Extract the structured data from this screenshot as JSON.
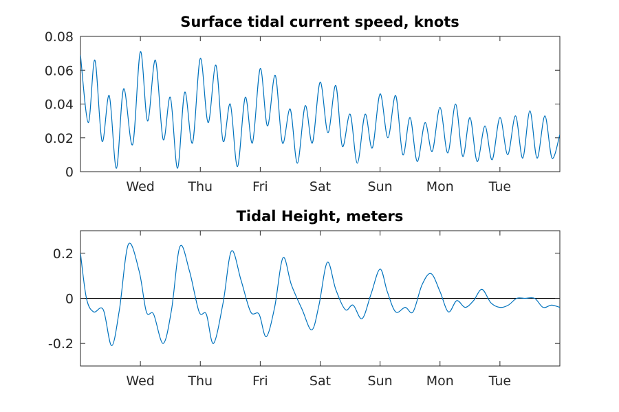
{
  "figure": {
    "background": "#ffffff",
    "axis_color": "#262626",
    "series_color": "#0072bd"
  },
  "chart_data": [
    {
      "type": "line",
      "title": "Surface tidal current speed, knots",
      "xlabel": "",
      "ylabel": "",
      "x_unit": "days from plot start",
      "xlim": [
        0,
        8
      ],
      "ylim": [
        0,
        0.08
      ],
      "grid": false,
      "legend": "none",
      "yticks": [
        0,
        0.02,
        0.04,
        0.06,
        0.08
      ],
      "ytick_labels": [
        "0",
        "0.02",
        "0.04",
        "0.06",
        "0.08"
      ],
      "xticks": [
        1,
        2,
        3,
        4,
        5,
        6,
        7
      ],
      "xtick_labels": [
        "Wed",
        "Thu",
        "Fri",
        "Sat",
        "Sun",
        "Mon",
        "Tue"
      ],
      "series": [
        {
          "x": [
            0,
            0.13,
            0.24,
            0.36,
            0.48,
            0.6,
            0.72,
            0.87,
            1.0,
            1.12,
            1.25,
            1.38,
            1.5,
            1.62,
            1.74,
            1.87,
            2.0,
            2.13,
            2.26,
            2.38,
            2.5,
            2.62,
            2.75,
            2.87,
            3.0,
            3.12,
            3.25,
            3.37,
            3.5,
            3.62,
            3.75,
            3.87,
            4.0,
            4.13,
            4.26,
            4.37,
            4.5,
            4.62,
            4.75,
            4.87,
            5.0,
            5.13,
            5.26,
            5.38,
            5.5,
            5.62,
            5.75,
            5.87,
            6.0,
            6.13,
            6.26,
            6.38,
            6.5,
            6.62,
            6.75,
            6.87,
            7.0,
            7.13,
            7.26,
            7.38,
            7.5,
            7.62,
            7.75,
            7.87,
            8.0
          ],
          "y": [
            0.069,
            0.029,
            0.066,
            0.018,
            0.045,
            0.002,
            0.049,
            0.016,
            0.071,
            0.03,
            0.066,
            0.019,
            0.044,
            0.002,
            0.047,
            0.017,
            0.067,
            0.029,
            0.063,
            0.018,
            0.04,
            0.003,
            0.044,
            0.017,
            0.061,
            0.027,
            0.057,
            0.017,
            0.037,
            0.005,
            0.039,
            0.017,
            0.053,
            0.023,
            0.051,
            0.015,
            0.034,
            0.005,
            0.034,
            0.014,
            0.046,
            0.02,
            0.045,
            0.01,
            0.032,
            0.006,
            0.029,
            0.012,
            0.038,
            0.011,
            0.04,
            0.009,
            0.032,
            0.006,
            0.027,
            0.007,
            0.032,
            0.01,
            0.033,
            0.008,
            0.036,
            0.008,
            0.033,
            0.008,
            0.022
          ]
        }
      ]
    },
    {
      "type": "line",
      "title": "Tidal Height, meters",
      "xlabel": "",
      "ylabel": "",
      "x_unit": "days from plot start",
      "xlim": [
        0,
        8
      ],
      "ylim": [
        -0.3,
        0.3
      ],
      "grid": false,
      "legend": "none",
      "zero_line": true,
      "yticks": [
        -0.2,
        0,
        0.2
      ],
      "ytick_labels": [
        "-0.2",
        "0",
        "0.2"
      ],
      "xticks": [
        1,
        2,
        3,
        4,
        5,
        6,
        7
      ],
      "xtick_labels": [
        "Wed",
        "Thu",
        "Fri",
        "Sat",
        "Sun",
        "Mon",
        "Tue"
      ],
      "series": [
        {
          "x": [
            0,
            0.1,
            0.22,
            0.38,
            0.52,
            0.65,
            0.8,
            0.98,
            1.1,
            1.22,
            1.38,
            1.52,
            1.66,
            1.82,
            1.98,
            2.1,
            2.22,
            2.38,
            2.52,
            2.68,
            2.84,
            2.98,
            3.1,
            3.24,
            3.38,
            3.52,
            3.7,
            3.86,
            3.98,
            4.12,
            4.26,
            4.42,
            4.55,
            4.7,
            4.85,
            5.0,
            5.12,
            5.26,
            5.42,
            5.55,
            5.7,
            5.85,
            6.0,
            6.14,
            6.28,
            6.42,
            6.56,
            6.7,
            6.85,
            7.0,
            7.14,
            7.28,
            7.42,
            7.58,
            7.72,
            7.86,
            8.0
          ],
          "y": [
            0.2,
            0.0,
            -0.06,
            -0.05,
            -0.21,
            -0.05,
            0.24,
            0.12,
            -0.06,
            -0.07,
            -0.2,
            -0.05,
            0.23,
            0.12,
            -0.06,
            -0.07,
            -0.2,
            -0.02,
            0.21,
            0.08,
            -0.06,
            -0.07,
            -0.17,
            -0.04,
            0.18,
            0.06,
            -0.05,
            -0.14,
            -0.03,
            0.16,
            0.04,
            -0.05,
            -0.03,
            -0.09,
            0.02,
            0.13,
            0.03,
            -0.06,
            -0.04,
            -0.06,
            0.06,
            0.11,
            0.03,
            -0.06,
            -0.01,
            -0.04,
            -0.01,
            0.04,
            -0.02,
            -0.04,
            -0.03,
            0.0,
            0.0,
            0.0,
            -0.04,
            -0.03,
            -0.04
          ]
        }
      ]
    }
  ]
}
